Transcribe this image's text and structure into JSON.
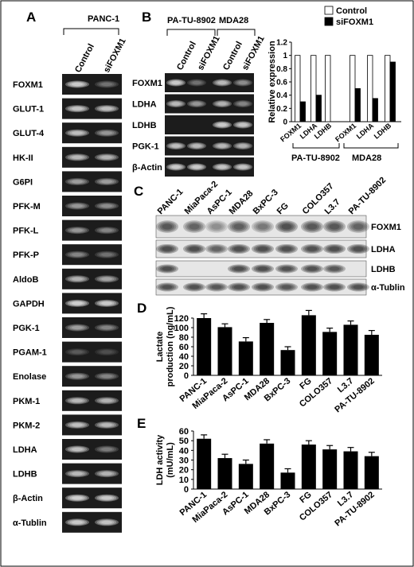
{
  "panelA": {
    "label": "A",
    "title": "PANC-1",
    "lanes": [
      "Control",
      "siFOXM1"
    ],
    "genes": [
      "FOXM1",
      "GLUT-1",
      "GLUT-4",
      "HK-II",
      "G6PI",
      "PFK-M",
      "PFK-L",
      "PFK-P",
      "AldoB",
      "GAPDH",
      "PGK-1",
      "PGAM-1",
      "Enolase",
      "PKM-1",
      "PKM-2",
      "LDHA",
      "LDHB",
      "β-Actin",
      "α-Tublin"
    ]
  },
  "panelB": {
    "label": "B",
    "groups": [
      "PA-TU-8902",
      "MDA28"
    ],
    "lanes": [
      "Control",
      "siFOXM1",
      "Control",
      "siFOXM1"
    ],
    "genes": [
      "FOXM1",
      "LDHA",
      "LDHB",
      "PGK-1",
      "β-Actin"
    ]
  },
  "chart_data": [
    {
      "type": "bar",
      "panel": "B",
      "ylabel": "Relative expression",
      "ylim": [
        0,
        1.2
      ],
      "yticks": [
        0,
        0.2,
        0.4,
        0.6,
        0.8,
        1,
        1.2
      ],
      "legend": "top-right",
      "groups": [
        "PA-TU-8902",
        "MDA28"
      ],
      "categories": [
        "FOXM1",
        "LDHA",
        "LDHB",
        "FOXM1",
        "LDHA",
        "LDHB"
      ],
      "series": [
        {
          "name": "Control",
          "color": "#ffffff",
          "values": [
            1,
            1,
            1,
            1,
            1,
            1
          ]
        },
        {
          "name": "siFOXM1",
          "color": "#000000",
          "values": [
            0.3,
            0.4,
            0,
            0.5,
            0.35,
            0.9
          ]
        }
      ]
    },
    {
      "type": "bar",
      "panel": "D",
      "ylabel": "Lactate production (ng/mL)",
      "ylabel_lines": [
        "Lactate",
        "production (ng/mL)"
      ],
      "ylim": [
        0,
        120
      ],
      "yticks": [
        0,
        20,
        40,
        60,
        80,
        100,
        120
      ],
      "categories": [
        "PANC-1",
        "MiaPaca-2",
        "AsPC-1",
        "MDA28",
        "BxPC-3",
        "FG",
        "COLO357",
        "L3.7",
        "PA-TU-8902"
      ],
      "values": [
        120,
        101,
        71,
        110,
        53,
        126,
        91,
        106,
        85
      ],
      "errors": [
        9,
        7,
        8,
        7,
        7,
        10,
        8,
        8,
        9
      ]
    },
    {
      "type": "bar",
      "panel": "E",
      "ylabel": "LDH activity (mU/mL)",
      "ylabel_lines": [
        "LDH activity",
        "(mU/mL)"
      ],
      "ylim": [
        0,
        60
      ],
      "yticks": [
        0,
        10,
        20,
        30,
        40,
        50,
        60
      ],
      "categories": [
        "PANC-1",
        "MiaPaca-2",
        "AsPC-1",
        "MDA28",
        "BxPC-3",
        "FG",
        "COLO357",
        "L3.7",
        "PA-TU-8902"
      ],
      "values": [
        52,
        32,
        26,
        47,
        17,
        46,
        41,
        39,
        34
      ],
      "errors": [
        4,
        4,
        4,
        4,
        4,
        4,
        4,
        4,
        4
      ]
    }
  ],
  "panelC": {
    "label": "C",
    "lanes": [
      "PANC-1",
      "MiaPaca-2",
      "AsPC-1",
      "MDA28",
      "BxPC-3",
      "FG",
      "COLO357",
      "L3.7",
      "PA-TU-8902"
    ],
    "proteins": [
      "FOXM1",
      "LDHA",
      "LDHB",
      "α-Tublin"
    ]
  },
  "panelD": {
    "label": "D"
  },
  "panelE": {
    "label": "E"
  }
}
